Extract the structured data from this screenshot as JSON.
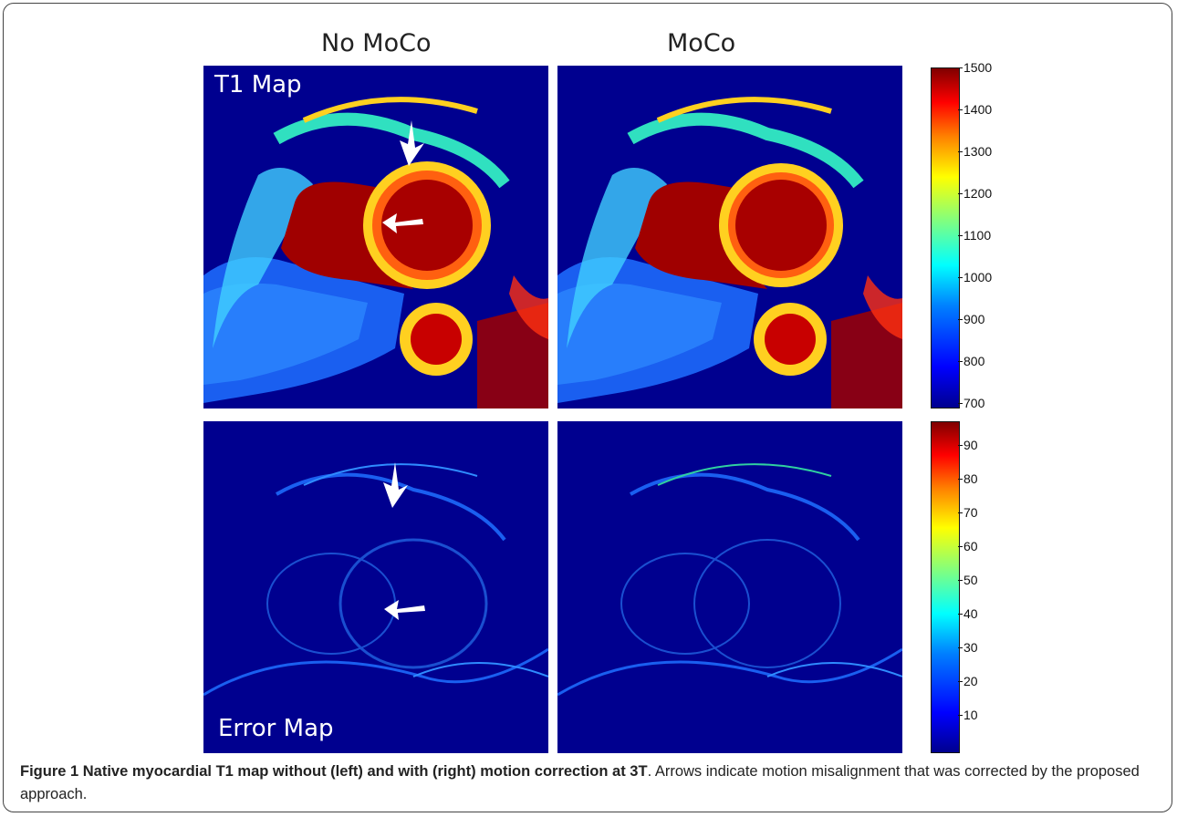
{
  "figure": {
    "col_titles": [
      "No MoCo",
      "MoCo"
    ],
    "row_labels": [
      "T1 Map",
      "Error Map"
    ],
    "t1_colorbar": {
      "ticks": [
        "1500",
        "1400",
        "1300",
        "1200",
        "1100",
        "1000",
        "900",
        "800",
        "700"
      ],
      "colormap": "jet"
    },
    "error_colorbar": {
      "ticks": [
        "90",
        "80",
        "70",
        "60",
        "50",
        "40",
        "30",
        "20",
        "10"
      ],
      "colormap": "jet"
    },
    "caption_bold": "Figure 1 Native myocardial T1 map without (left) and with (right) motion correction at 3T",
    "caption_rest": ". Arrows indicate motion misalignment that was corrected by the proposed approach."
  }
}
